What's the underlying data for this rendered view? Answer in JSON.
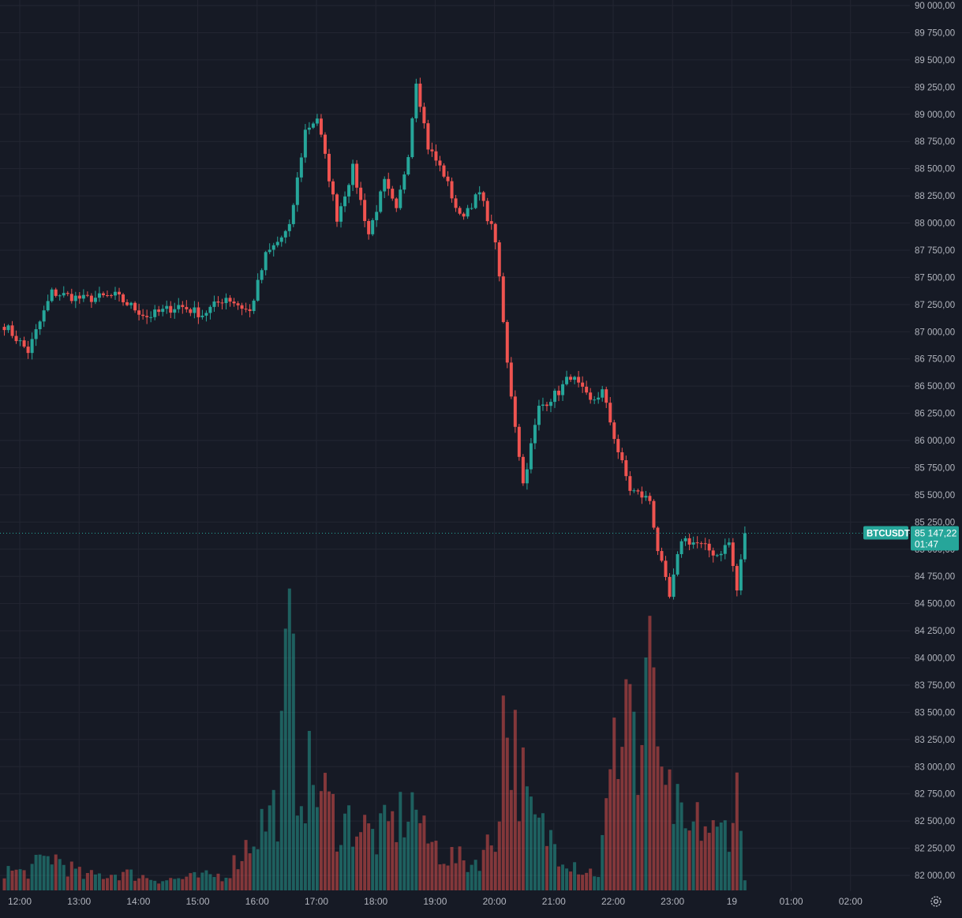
{
  "chart_data": {
    "type": "candlestick",
    "title": "",
    "symbol": "BTCUSDT",
    "last_price": "85 147,22",
    "countdown": "01:47",
    "price_range": [
      81850,
      90000
    ],
    "y_ticks": [
      "82 000,00",
      "82 250,00",
      "82 500,00",
      "82 750,00",
      "83 000,00",
      "83 250,00",
      "83 500,00",
      "83 750,00",
      "84 000,00",
      "84 250,00",
      "84 500,00",
      "84 750,00",
      "85 000,00",
      "85 250,00",
      "85 500,00",
      "85 750,00",
      "86 000,00",
      "86 250,00",
      "86 500,00",
      "86 750,00",
      "87 000,00",
      "87 250,00",
      "87 500,00",
      "87 750,00",
      "88 000,00",
      "88 250,00",
      "88 500,00",
      "88 750,00",
      "89 000,00",
      "89 250,00",
      "89 500,00",
      "89 750,00",
      "90 000,00"
    ],
    "y_tick_values": [
      82000,
      82250,
      82500,
      82750,
      83000,
      83250,
      83500,
      83750,
      84000,
      84250,
      84500,
      84750,
      85000,
      85250,
      85500,
      85750,
      86000,
      86250,
      86500,
      86750,
      87000,
      87250,
      87500,
      87750,
      88000,
      88250,
      88500,
      88750,
      89000,
      89250,
      89500,
      89750,
      90000
    ],
    "x_ticks": [
      "12:00",
      "13:00",
      "14:00",
      "15:00",
      "16:00",
      "17:00",
      "18:00",
      "19:00",
      "20:00",
      "21:00",
      "22:00",
      "23:00",
      "19",
      "01:00",
      "02:00"
    ],
    "interval_minutes": 5,
    "up_color": "#26a69a",
    "down_color": "#ef5350",
    "anchors": [
      {
        "i": 0,
        "p": 87060
      },
      {
        "i": 6,
        "p": 86820
      },
      {
        "i": 12,
        "p": 87360
      },
      {
        "i": 20,
        "p": 87300
      },
      {
        "i": 28,
        "p": 87330
      },
      {
        "i": 36,
        "p": 87140
      },
      {
        "i": 44,
        "p": 87240
      },
      {
        "i": 50,
        "p": 87160
      },
      {
        "i": 56,
        "p": 87320
      },
      {
        "i": 62,
        "p": 87180
      },
      {
        "i": 66,
        "p": 87700
      },
      {
        "i": 72,
        "p": 87950
      },
      {
        "i": 76,
        "p": 88850
      },
      {
        "i": 79,
        "p": 88970
      },
      {
        "i": 84,
        "p": 88050
      },
      {
        "i": 88,
        "p": 88500
      },
      {
        "i": 92,
        "p": 87900
      },
      {
        "i": 96,
        "p": 88370
      },
      {
        "i": 99,
        "p": 88100
      },
      {
        "i": 102,
        "p": 88650
      },
      {
        "i": 104,
        "p": 89320
      },
      {
        "i": 107,
        "p": 88700
      },
      {
        "i": 111,
        "p": 88450
      },
      {
        "i": 115,
        "p": 88050
      },
      {
        "i": 120,
        "p": 88270
      },
      {
        "i": 124,
        "p": 87850
      },
      {
        "i": 127,
        "p": 86700
      },
      {
        "i": 131,
        "p": 85600
      },
      {
        "i": 135,
        "p": 86300
      },
      {
        "i": 140,
        "p": 86450
      },
      {
        "i": 143,
        "p": 86600
      },
      {
        "i": 148,
        "p": 86350
      },
      {
        "i": 151,
        "p": 86450
      },
      {
        "i": 155,
        "p": 85900
      },
      {
        "i": 158,
        "p": 85550
      },
      {
        "i": 163,
        "p": 85450
      },
      {
        "i": 165,
        "p": 85000
      },
      {
        "i": 168,
        "p": 84550
      },
      {
        "i": 171,
        "p": 85100
      },
      {
        "i": 175,
        "p": 85050
      },
      {
        "i": 180,
        "p": 84950
      },
      {
        "i": 183,
        "p": 85060
      },
      {
        "i": 185,
        "p": 84620
      },
      {
        "i": 187,
        "p": 85147
      }
    ],
    "volume_anchors": [
      {
        "i": 0,
        "v": 1.2
      },
      {
        "i": 5,
        "v": 1
      },
      {
        "i": 12,
        "v": 2
      },
      {
        "i": 20,
        "v": 0.8
      },
      {
        "i": 30,
        "v": 1
      },
      {
        "i": 40,
        "v": 0.6
      },
      {
        "i": 56,
        "v": 0.9
      },
      {
        "i": 64,
        "v": 3.5
      },
      {
        "i": 69,
        "v": 5
      },
      {
        "i": 72,
        "v": 14
      },
      {
        "i": 74,
        "v": 7
      },
      {
        "i": 79,
        "v": 6
      },
      {
        "i": 84,
        "v": 4
      },
      {
        "i": 88,
        "v": 4
      },
      {
        "i": 94,
        "v": 3
      },
      {
        "i": 104,
        "v": 5
      },
      {
        "i": 106,
        "v": 3
      },
      {
        "i": 112,
        "v": 2
      },
      {
        "i": 118,
        "v": 1.5
      },
      {
        "i": 124,
        "v": 3
      },
      {
        "i": 126,
        "v": 10
      },
      {
        "i": 129,
        "v": 8
      },
      {
        "i": 133,
        "v": 4
      },
      {
        "i": 138,
        "v": 3
      },
      {
        "i": 142,
        "v": 2
      },
      {
        "i": 146,
        "v": 1.2
      },
      {
        "i": 150,
        "v": 1
      },
      {
        "i": 153,
        "v": 6
      },
      {
        "i": 155,
        "v": 9
      },
      {
        "i": 158,
        "v": 13
      },
      {
        "i": 160,
        "v": 6
      },
      {
        "i": 164,
        "v": 14
      },
      {
        "i": 166,
        "v": 5
      },
      {
        "i": 169,
        "v": 5
      },
      {
        "i": 172,
        "v": 3
      },
      {
        "i": 176,
        "v": 4
      },
      {
        "i": 180,
        "v": 3
      },
      {
        "i": 183,
        "v": 4
      },
      {
        "i": 185,
        "v": 5.5
      },
      {
        "i": 187,
        "v": 1
      }
    ]
  }
}
